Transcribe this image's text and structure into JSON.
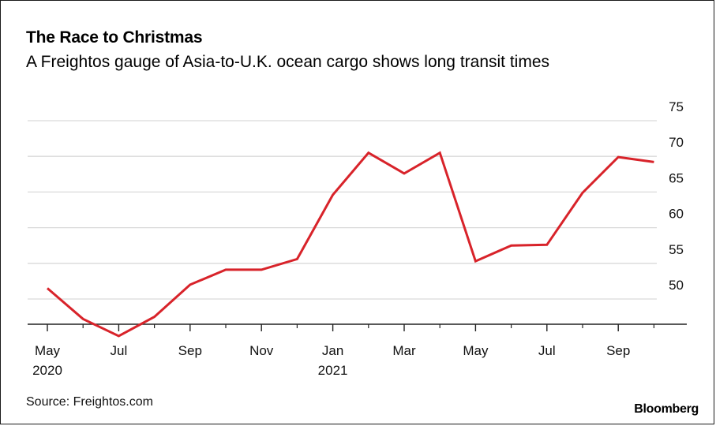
{
  "header": {
    "title": "The Race to Christmas",
    "subtitle": "A Freightos gauge of Asia-to-U.K. ocean cargo shows long transit times"
  },
  "footer": {
    "source": "Source: Freightos.com",
    "brand": "Bloomberg"
  },
  "colors": {
    "line": "#d8232a",
    "grid": "#d9d9d9",
    "axis": "#222222"
  },
  "chart_data": {
    "type": "line",
    "title": "The Race to Christmas",
    "subtitle": "A Freightos gauge of Asia-to-U.K. ocean cargo shows long transit times",
    "xlabel": "",
    "ylabel": "",
    "y_axis_position": "right",
    "ylim": [
      41,
      75
    ],
    "yticks": [
      50,
      55,
      60,
      65,
      70,
      75
    ],
    "grid": true,
    "x_ticks": [
      {
        "month": "2020-05",
        "label": "May",
        "year": "2020"
      },
      {
        "month": "2020-07",
        "label": "Jul",
        "year": ""
      },
      {
        "month": "2020-09",
        "label": "Sep",
        "year": ""
      },
      {
        "month": "2020-11",
        "label": "Nov",
        "year": ""
      },
      {
        "month": "2021-01",
        "label": "Jan",
        "year": "2021"
      },
      {
        "month": "2021-03",
        "label": "Mar",
        "year": ""
      },
      {
        "month": "2021-05",
        "label": "May",
        "year": ""
      },
      {
        "month": "2021-07",
        "label": "Jul",
        "year": ""
      },
      {
        "month": "2021-09",
        "label": "Sep",
        "year": ""
      }
    ],
    "x_minor_ticks": [
      "2020-06",
      "2020-08",
      "2020-10",
      "2020-12",
      "2021-02",
      "2021-04",
      "2021-06",
      "2021-08",
      "2021-10"
    ],
    "x": [
      "2020-05",
      "2020-06",
      "2020-07",
      "2020-08",
      "2020-09",
      "2020-10",
      "2020-11",
      "2020-12",
      "2021-01",
      "2021-02",
      "2021-03",
      "2021-04",
      "2021-05",
      "2021-06",
      "2021-07",
      "2021-08",
      "2021-09",
      "2021-10"
    ],
    "series": [
      {
        "values": [
          51.5,
          47.2,
          44.8,
          47.5,
          52.0,
          54.1,
          54.1,
          55.6,
          64.6,
          70.5,
          67.6,
          70.5,
          55.3,
          57.5,
          57.6,
          64.9,
          69.9,
          69.2
        ]
      }
    ]
  }
}
